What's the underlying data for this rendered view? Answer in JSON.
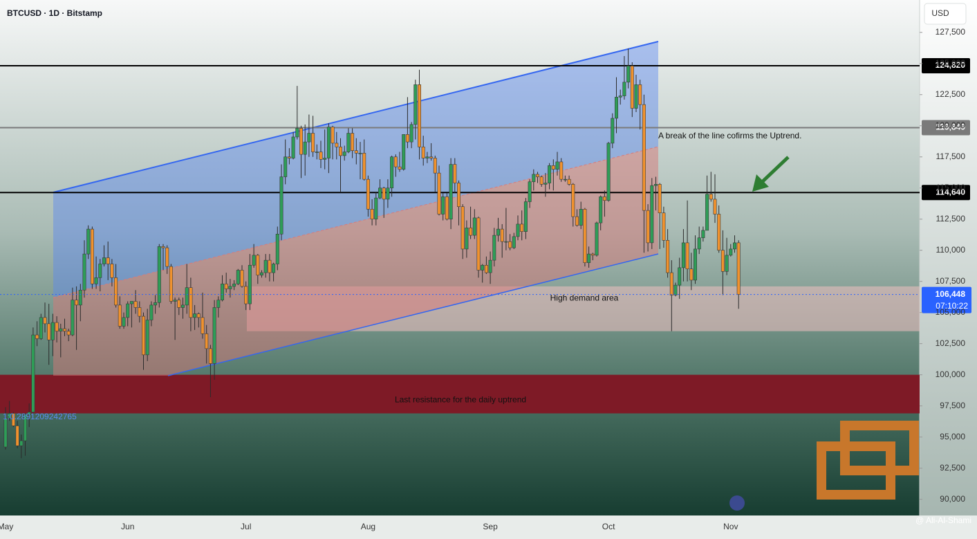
{
  "chart_data": {
    "type": "candlestick",
    "title": "BTCUSD · 1D · Bitstamp",
    "currency": "USD",
    "annotation": "A break of the line cofirms the Uptrend.",
    "ratio_text": "1:0.2891209242765",
    "watermark": "@ Ali-Al-Shami",
    "up_color": "#2e9d57",
    "down_color": "#f0922e",
    "categories": [
      "May",
      null,
      null,
      null,
      null,
      null,
      null,
      null,
      null,
      null,
      null,
      null,
      null,
      null,
      null,
      null,
      null,
      null,
      null,
      null,
      null,
      null,
      null,
      null,
      null,
      null,
      null,
      null,
      null,
      null,
      null,
      "Jun",
      null,
      null,
      null,
      null,
      null,
      null,
      null,
      null,
      null,
      null,
      null,
      null,
      null,
      null,
      null,
      null,
      null,
      null,
      null,
      null,
      null,
      null,
      null,
      null,
      null,
      null,
      null,
      null,
      null,
      "Jul",
      null,
      null,
      null,
      null,
      null,
      null,
      null,
      null,
      null,
      null,
      null,
      null,
      null,
      null,
      null,
      null,
      null,
      null,
      null,
      null,
      null,
      null,
      null,
      null,
      null,
      null,
      null,
      null,
      null,
      null,
      "Aug",
      null,
      null,
      null,
      null,
      null,
      null,
      null,
      null,
      null,
      null,
      null,
      null,
      null,
      null,
      null,
      null,
      null,
      null,
      null,
      null,
      null,
      null,
      null,
      null,
      null,
      null,
      null,
      null,
      null,
      null,
      "Sep",
      null,
      null,
      null,
      null,
      null,
      null,
      null,
      null,
      null,
      null,
      null,
      null,
      null,
      null,
      null,
      null,
      null,
      null,
      null,
      null,
      null,
      null,
      null,
      null,
      null,
      null,
      null,
      null,
      null,
      "Oct",
      null,
      null,
      null,
      null,
      null,
      null,
      null,
      null,
      null,
      null,
      null,
      null,
      null,
      null,
      null,
      null,
      null,
      null,
      null,
      null,
      null,
      null,
      null,
      null,
      null,
      null,
      null,
      null,
      null,
      null,
      "Nov",
      null,
      null
    ],
    "open": [
      94200,
      96500,
      96900,
      95900,
      94300,
      94700,
      96800,
      97000,
      103200,
      102900,
      104600,
      104100,
      102800,
      104200,
      103500,
      103700,
      103500,
      103200,
      106000,
      105600,
      106800,
      109700,
      111700,
      107300,
      107800,
      108900,
      109400,
      108900,
      107800,
      105600,
      103900,
      104600,
      105700,
      105900,
      105400,
      104700,
      101600,
      104400,
      105600,
      105800,
      110300,
      110200,
      108700,
      105900,
      106000,
      105400,
      105600,
      107000,
      104600,
      104900,
      104600,
      103300,
      102100,
      100900,
      105400,
      106000,
      107300,
      106900,
      107100,
      107300,
      108400,
      107100,
      105700,
      108800,
      109600,
      108000,
      108200,
      109200,
      108200,
      108900,
      111300,
      115900,
      117500,
      117400,
      119100,
      119800,
      117700,
      118700,
      119400,
      117900,
      117900,
      117300,
      117400,
      119900,
      118600,
      118300,
      117600,
      117900,
      119400,
      118000,
      117800,
      117800,
      115700,
      113300,
      112500,
      114200,
      115000,
      114100,
      115000,
      117500,
      116700,
      116500,
      119300,
      118700,
      120100,
      123300,
      118300,
      117400,
      117500,
      117400,
      116200,
      112900,
      114300,
      112500,
      116900,
      115400,
      113500,
      110100,
      111800,
      111200,
      112600,
      108400,
      108800,
      108200,
      109200,
      111200,
      111700,
      110700,
      110700,
      110200,
      111100,
      112100,
      111500,
      113900,
      115500,
      116100,
      115900,
      115300,
      115400,
      116800,
      116500,
      117100,
      115700,
      115700,
      115300,
      112700,
      112000,
      113300,
      109000,
      109700,
      109600,
      112200,
      114300,
      114000,
      118600,
      120600,
      122300,
      122400,
      123500,
      124800,
      121400,
      123300,
      121700,
      113200,
      110600,
      115200,
      115300,
      113000,
      110800,
      108200,
      106400,
      107200,
      108600,
      110600,
      108500,
      107600,
      110100,
      111000,
      111600,
      114500,
      114100,
      112900,
      110000,
      108300,
      109600,
      110100,
      110600
    ],
    "high": [
      97400,
      97900,
      97000,
      96300,
      95200,
      96900,
      97700,
      103800,
      104300,
      104900,
      105800,
      105700,
      104900,
      104700,
      104100,
      104500,
      103700,
      107000,
      107100,
      107300,
      110800,
      112000,
      111900,
      109500,
      109300,
      110400,
      110700,
      109300,
      108900,
      106300,
      105000,
      105900,
      105900,
      106800,
      105900,
      105000,
      105300,
      105900,
      106400,
      110500,
      110500,
      110400,
      108900,
      106200,
      106200,
      106200,
      108900,
      107800,
      105600,
      105000,
      106600,
      104000,
      102400,
      106000,
      106300,
      108000,
      108200,
      107700,
      107600,
      108500,
      108800,
      107500,
      109700,
      110500,
      109700,
      108400,
      109700,
      109700,
      109000,
      111900,
      116900,
      118900,
      118200,
      119500,
      123200,
      120000,
      120100,
      120900,
      120800,
      118500,
      118800,
      119700,
      120200,
      120000,
      119500,
      119000,
      118400,
      119800,
      119800,
      119000,
      118700,
      118900,
      116000,
      114100,
      114700,
      115700,
      115100,
      115700,
      117600,
      117700,
      117900,
      119300,
      122300,
      120300,
      123700,
      124500,
      119200,
      117900,
      118600,
      117600,
      116800,
      114600,
      114600,
      117400,
      117400,
      115600,
      113700,
      112400,
      113500,
      113300,
      112700,
      108900,
      109500,
      109900,
      111800,
      112600,
      112100,
      113400,
      111300,
      111400,
      112800,
      113200,
      114200,
      115700,
      116500,
      116300,
      116000,
      116200,
      117000,
      117300,
      117900,
      117400,
      116000,
      116000,
      115400,
      113300,
      113900,
      113400,
      110300,
      109800,
      112300,
      114400,
      114800,
      118700,
      121000,
      123900,
      122900,
      125600,
      126200,
      125100,
      124100,
      123700,
      122500,
      113700,
      115800,
      115900,
      115400,
      113500,
      111700,
      109200,
      107400,
      109400,
      111700,
      114000,
      109800,
      111200,
      111900,
      111900,
      116000,
      116300,
      116100,
      113600,
      111600,
      111000,
      110500,
      111200,
      110800
    ],
    "low": [
      94000,
      96300,
      95800,
      94100,
      93300,
      93500,
      95800,
      96900,
      102300,
      102800,
      103400,
      100800,
      101500,
      102600,
      101400,
      103100,
      102700,
      103100,
      102000,
      104300,
      106200,
      109300,
      106900,
      106900,
      106700,
      108700,
      107600,
      107100,
      105400,
      103700,
      103700,
      103900,
      103800,
      104900,
      104200,
      100400,
      101100,
      103900,
      104900,
      105400,
      108400,
      108100,
      105700,
      102800,
      104800,
      104500,
      104900,
      103500,
      103600,
      103800,
      102900,
      100900,
      98200,
      99600,
      104600,
      105900,
      106600,
      106200,
      106800,
      107200,
      107000,
      105200,
      105200,
      108600,
      107300,
      107800,
      107800,
      107500,
      107500,
      108400,
      110800,
      115300,
      116900,
      117300,
      118900,
      115800,
      116000,
      117500,
      117500,
      117300,
      116600,
      116500,
      116200,
      117300,
      117300,
      114700,
      117200,
      117800,
      117400,
      116900,
      115700,
      115600,
      112700,
      112000,
      112000,
      114100,
      112600,
      113400,
      114300,
      115900,
      116300,
      116400,
      118200,
      118200,
      118900,
      117300,
      116800,
      117000,
      117200,
      114700,
      112800,
      112400,
      112400,
      111700,
      114600,
      112000,
      109300,
      109400,
      110900,
      110900,
      107800,
      107400,
      108100,
      107300,
      108700,
      110700,
      109400,
      110000,
      110000,
      110100,
      110800,
      110800,
      110900,
      113400,
      114800,
      115400,
      115100,
      114300,
      114900,
      114800,
      116000,
      115500,
      115500,
      115200,
      111900,
      111900,
      111700,
      108700,
      108600,
      109200,
      109500,
      111600,
      112700,
      113900,
      118200,
      119400,
      121700,
      122100,
      123000,
      120700,
      121100,
      119700,
      109800,
      109900,
      110100,
      113200,
      110100,
      110200,
      107800,
      103500,
      106300,
      106100,
      107500,
      107500,
      106800,
      107300,
      109700,
      110700,
      111600,
      113900,
      112200,
      109800,
      106400,
      108000,
      109500,
      109800,
      105300
    ],
    "close": [
      96500,
      96900,
      95900,
      94300,
      94700,
      96800,
      97000,
      103200,
      102900,
      104600,
      104100,
      102800,
      104200,
      103500,
      103700,
      103500,
      103200,
      106000,
      105600,
      106800,
      109700,
      111700,
      107300,
      107800,
      108900,
      109400,
      108900,
      107800,
      105600,
      103900,
      104600,
      105700,
      105900,
      105400,
      104700,
      101600,
      104400,
      105600,
      105800,
      110300,
      110200,
      108700,
      105900,
      106000,
      105400,
      105600,
      107000,
      104600,
      104900,
      104600,
      103300,
      102100,
      100900,
      105400,
      106000,
      107300,
      106900,
      107100,
      107300,
      108400,
      107100,
      105700,
      108800,
      109600,
      108000,
      108200,
      109200,
      108200,
      108900,
      111300,
      115900,
      117500,
      117400,
      119100,
      119800,
      117700,
      118700,
      119400,
      117900,
      117900,
      117300,
      117400,
      119900,
      118600,
      118300,
      117600,
      117900,
      119400,
      118000,
      117800,
      117800,
      115700,
      113300,
      112500,
      114200,
      115000,
      114100,
      115000,
      117500,
      116700,
      116500,
      119300,
      118700,
      120100,
      123300,
      118300,
      117400,
      117500,
      117400,
      116200,
      112900,
      114300,
      112500,
      116900,
      115400,
      113500,
      110100,
      111800,
      111200,
      112600,
      108400,
      108800,
      108200,
      109200,
      111200,
      111700,
      110700,
      110700,
      110200,
      111100,
      112100,
      111500,
      113900,
      115500,
      116100,
      115900,
      115300,
      115400,
      116800,
      116500,
      117100,
      115700,
      115700,
      115300,
      112700,
      112000,
      113300,
      109000,
      109700,
      109600,
      112200,
      114300,
      114000,
      118600,
      120600,
      122300,
      122400,
      123500,
      124800,
      121400,
      123300,
      121700,
      113200,
      110600,
      115200,
      115300,
      113000,
      110800,
      108200,
      106400,
      107200,
      108600,
      110600,
      108500,
      107600,
      110100,
      111000,
      111600,
      114500,
      114100,
      112900,
      110000,
      108300,
      109600,
      110100,
      110600,
      106448
    ],
    "ylim": [
      88700,
      130100
    ],
    "yticks": [
      {
        "value": 90000,
        "label": "90,000"
      },
      {
        "value": 92500,
        "label": "92,500"
      },
      {
        "value": 95000,
        "label": "95,000"
      },
      {
        "value": 97500,
        "label": "97,500"
      },
      {
        "value": 100000,
        "label": "100,000"
      },
      {
        "value": 102500,
        "label": "102,500"
      },
      {
        "value": 105000,
        "label": "105,000"
      },
      {
        "value": 107500,
        "label": "107,500"
      },
      {
        "value": 110000,
        "label": "110,000"
      },
      {
        "value": 112500,
        "label": "112,500"
      },
      {
        "value": 115000,
        "label": "115,000"
      },
      {
        "value": 117500,
        "label": "117,500"
      },
      {
        "value": 120000,
        "label": "120,000"
      },
      {
        "value": 122500,
        "label": "122,500"
      },
      {
        "value": 125000,
        "label": "125,000"
      },
      {
        "value": 127500,
        "label": "127,500"
      }
    ],
    "levels": [
      {
        "value": 124820,
        "label": "124,820",
        "color": "#000000"
      },
      {
        "value": 119849,
        "label": "119,849",
        "color": "#7a7a7a"
      },
      {
        "value": 114640,
        "label": "114,640",
        "color": "#000000"
      }
    ],
    "zones": [
      {
        "label": "High demand area",
        "from": 103500,
        "to": 107100,
        "color": "#e6bcbc"
      },
      {
        "label": "Last resistance for the daily uptrend",
        "from": 96900,
        "to": 100000,
        "color": "#7e1a26"
      }
    ],
    "last_price": {
      "value": 106448,
      "label": "106,448"
    },
    "countdown": "07:10:22",
    "last_price_color": "#2962ff"
  }
}
